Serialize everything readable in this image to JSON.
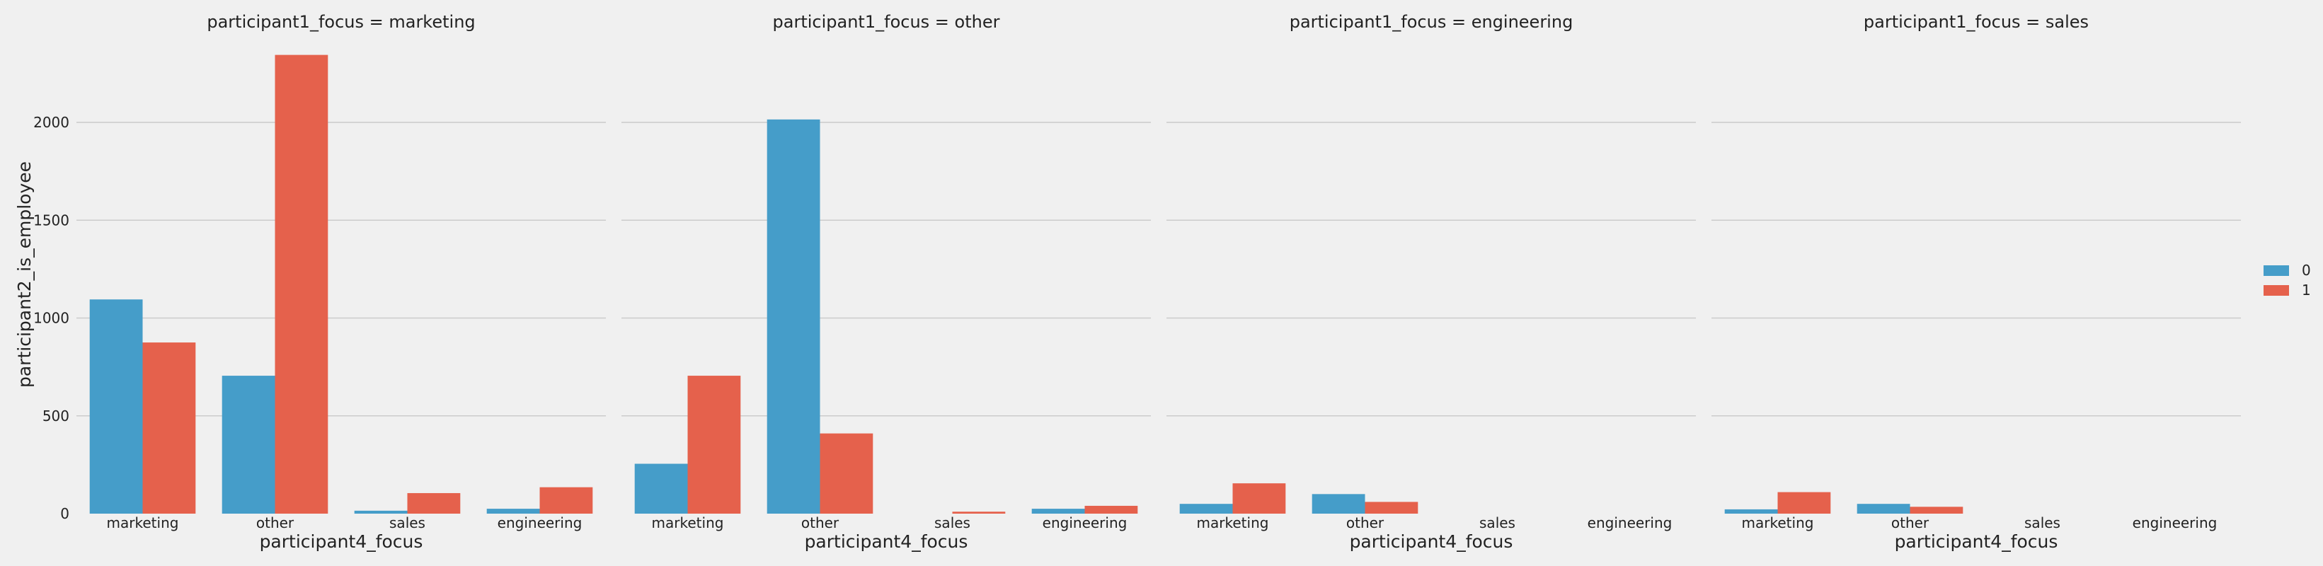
{
  "chart_data": {
    "type": "bar",
    "ylabel": "participant2_is_employee",
    "xlabel": "participant4_focus",
    "categories": [
      "marketing",
      "other",
      "sales",
      "engineering"
    ],
    "ylim": [
      0,
      2400
    ],
    "yticks": [
      0,
      500,
      1000,
      1500,
      2000
    ],
    "grid": true,
    "legend_position": "right",
    "colors": {
      "0": "#459dc9",
      "1": "#e5614c"
    },
    "legend": [
      {
        "label": "0",
        "key": "0"
      },
      {
        "label": "1",
        "key": "1"
      }
    ],
    "facets": [
      {
        "title": "participant1_focus = marketing",
        "series": [
          {
            "key": "0",
            "values": [
              1095,
              705,
              15,
              25
            ]
          },
          {
            "key": "1",
            "values": [
              875,
              2345,
              105,
              135
            ]
          }
        ]
      },
      {
        "title": "participant1_focus = other",
        "series": [
          {
            "key": "0",
            "values": [
              255,
              2015,
              0,
              25
            ]
          },
          {
            "key": "1",
            "values": [
              705,
              410,
              10,
              40
            ]
          }
        ]
      },
      {
        "title": "participant1_focus = engineering",
        "series": [
          {
            "key": "0",
            "values": [
              50,
              100,
              0,
              0
            ]
          },
          {
            "key": "1",
            "values": [
              155,
              60,
              0,
              0
            ]
          }
        ]
      },
      {
        "title": "participant1_focus = sales",
        "series": [
          {
            "key": "0",
            "values": [
              22,
              50,
              0,
              0
            ]
          },
          {
            "key": "1",
            "values": [
              110,
              35,
              0,
              0
            ]
          }
        ]
      }
    ]
  }
}
